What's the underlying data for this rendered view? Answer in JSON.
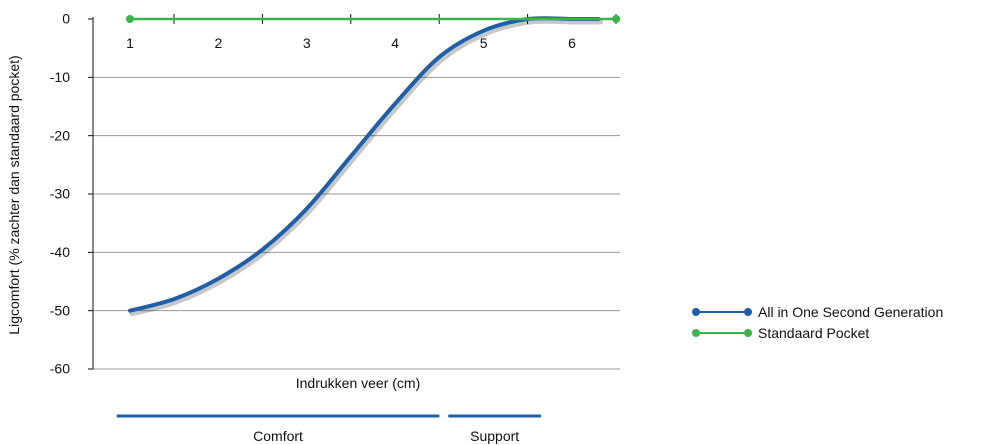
{
  "chart_data": {
    "type": "line",
    "title": "",
    "xlabel": "Indrukken veer (cm)",
    "ylabel": "Ligcomfort (% zachter dan standaard pocket)",
    "x_ticks": [
      "1",
      "2",
      "3",
      "4",
      "5",
      "6"
    ],
    "y_ticks": [
      "0",
      "-10",
      "-20",
      "-30",
      "-40",
      "-50",
      "-60"
    ],
    "xlim": [
      0.5,
      6.7
    ],
    "ylim": [
      -60,
      0
    ],
    "grid": true,
    "legend_position": "right",
    "series": [
      {
        "name": "All in One Second Generation",
        "color": "#1f5fa8",
        "x": [
          1,
          1.5,
          2,
          2.5,
          3,
          3.5,
          4,
          4.5,
          5,
          5.5,
          6,
          6.3
        ],
        "y": [
          -50,
          -48,
          -44.5,
          -39.5,
          -32.5,
          -23.5,
          -14.5,
          -6.5,
          -2,
          0,
          0,
          0
        ]
      },
      {
        "name": "Standaard Pocket",
        "color": "#3ab54a",
        "x": [
          1,
          6.5
        ],
        "y": [
          0,
          0
        ]
      }
    ],
    "regions": [
      {
        "label": "Comfort",
        "from": 0.85,
        "to": 4.5
      },
      {
        "label": "Support",
        "from": 4.6,
        "to": 5.65
      }
    ],
    "region_color": "#1f5fa8"
  }
}
